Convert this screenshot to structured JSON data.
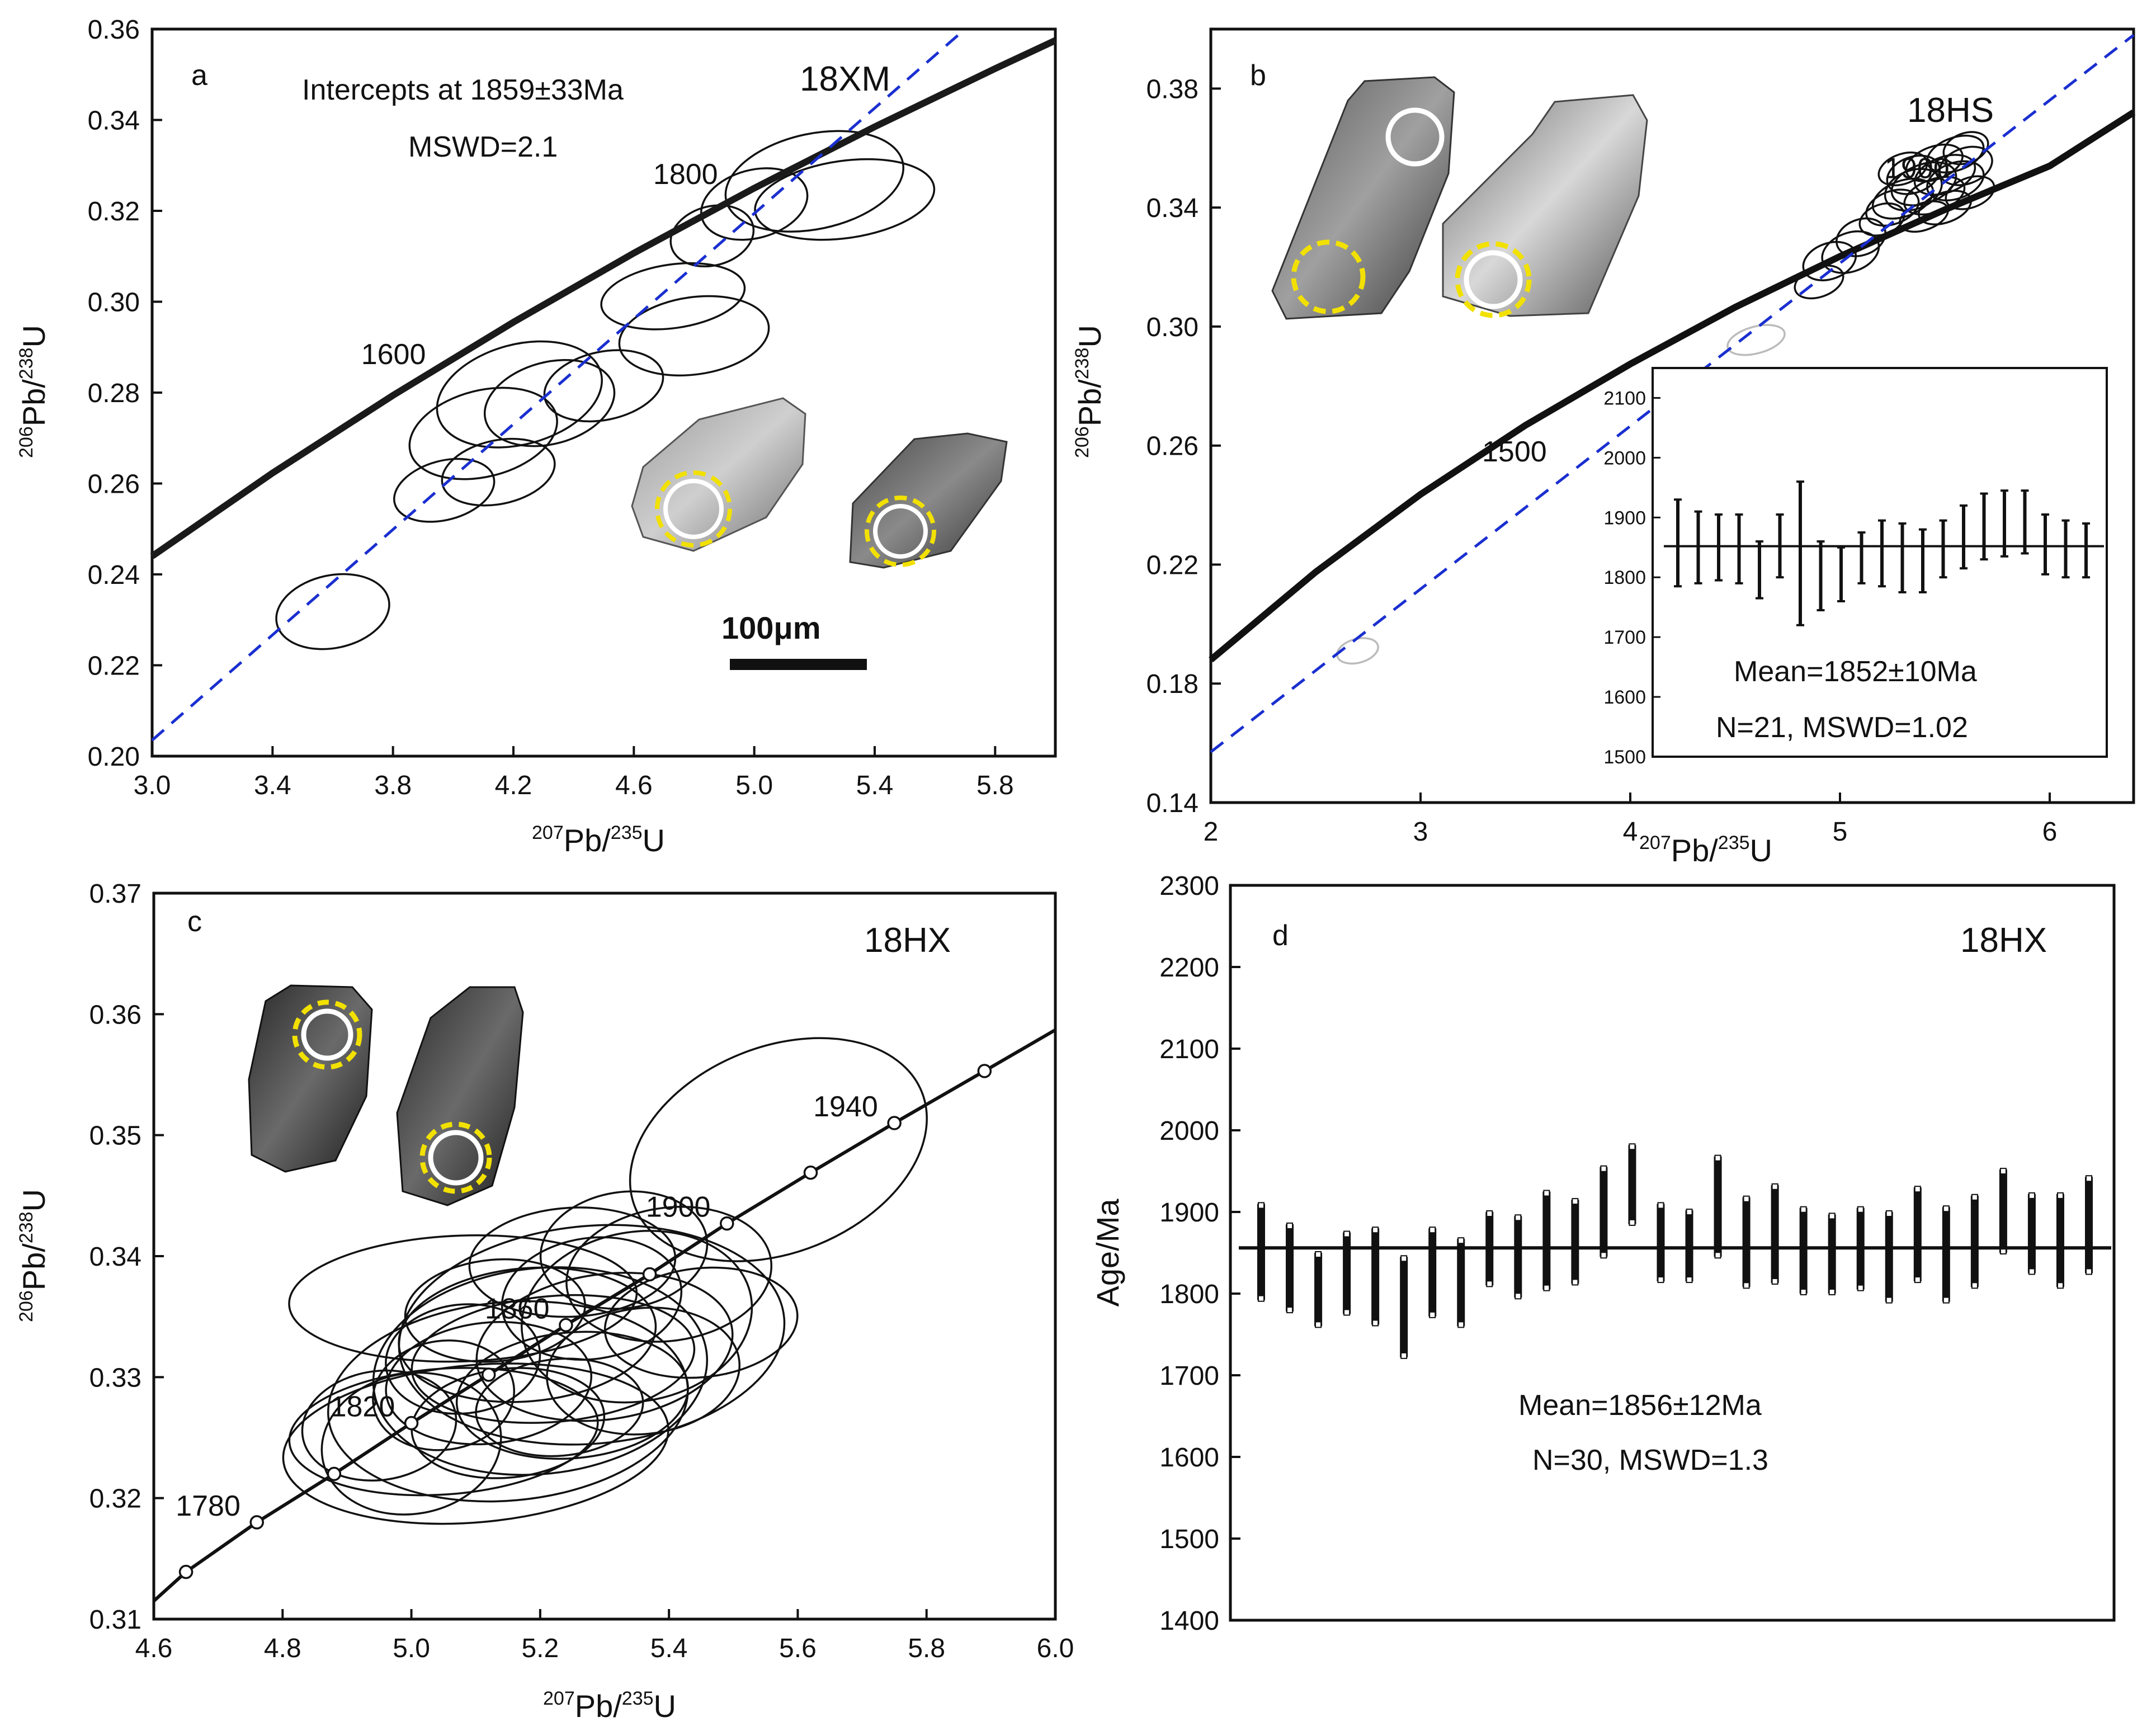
{
  "figure": {
    "panels": [
      "a",
      "b",
      "c",
      "d"
    ]
  },
  "chart_data": [
    {
      "type": "scatter",
      "subtype": "concordia",
      "panel": "a",
      "sample": "18XM",
      "xlabel_parts": [
        "207",
        "Pb/",
        "235",
        "U"
      ],
      "ylabel_parts": [
        "206",
        "Pb/",
        "238",
        "U"
      ],
      "xlim": [
        3.0,
        6.0
      ],
      "ylim": [
        0.2,
        0.36
      ],
      "xticks": [
        3.0,
        3.4,
        3.8,
        4.2,
        4.6,
        5.0,
        5.4,
        5.8
      ],
      "xtick_labels": [
        "3.0",
        "3.4",
        "3.8",
        "4.2",
        "4.6",
        "5.0",
        "5.4",
        "5.8"
      ],
      "yticks": [
        0.2,
        0.22,
        0.24,
        0.26,
        0.28,
        0.3,
        0.32,
        0.34,
        0.36
      ],
      "ytick_labels": [
        "0.20",
        "0.22",
        "0.24",
        "0.26",
        "0.28",
        "0.30",
        "0.32",
        "0.34",
        "0.36"
      ],
      "concordia_curve": {
        "x": [
          3.0,
          3.4,
          3.8,
          4.2,
          4.6,
          5.0,
          5.4,
          5.8,
          6.0
        ],
        "y": [
          0.244,
          0.2623,
          0.2794,
          0.2955,
          0.3107,
          0.325,
          0.3385,
          0.3513,
          0.3575
        ]
      },
      "age_markers": [
        {
          "label": "1600",
          "x": 3.88,
          "y": 0.2826
        },
        {
          "label": "1800",
          "x": 4.85,
          "y": 0.3222
        }
      ],
      "discordia_line": {
        "x": [
          3.0,
          5.7
        ],
        "y": [
          0.2035,
          0.36
        ],
        "color": "#1a2fd0"
      },
      "ellipses": [
        {
          "x": 3.6,
          "y": 0.2318,
          "rx": 0.19,
          "ry": 0.008,
          "angle_deg": 12
        },
        {
          "x": 3.97,
          "y": 0.2585,
          "rx": 0.17,
          "ry": 0.0065,
          "angle_deg": 15
        },
        {
          "x": 4.15,
          "y": 0.2625,
          "rx": 0.19,
          "ry": 0.007,
          "angle_deg": 12
        },
        {
          "x": 4.22,
          "y": 0.2796,
          "rx": 0.28,
          "ry": 0.011,
          "angle_deg": 15
        },
        {
          "x": 4.32,
          "y": 0.2777,
          "rx": 0.22,
          "ry": 0.009,
          "angle_deg": 15
        },
        {
          "x": 4.1,
          "y": 0.271,
          "rx": 0.25,
          "ry": 0.0095,
          "angle_deg": 14
        },
        {
          "x": 4.5,
          "y": 0.2815,
          "rx": 0.2,
          "ry": 0.0075,
          "angle_deg": 12
        },
        {
          "x": 4.73,
          "y": 0.3012,
          "rx": 0.24,
          "ry": 0.007,
          "angle_deg": 8
        },
        {
          "x": 4.8,
          "y": 0.2925,
          "rx": 0.25,
          "ry": 0.0085,
          "angle_deg": 8
        },
        {
          "x": 4.86,
          "y": 0.3145,
          "rx": 0.14,
          "ry": 0.0065,
          "angle_deg": 15
        },
        {
          "x": 5.0,
          "y": 0.3215,
          "rx": 0.18,
          "ry": 0.0075,
          "angle_deg": 15
        },
        {
          "x": 5.2,
          "y": 0.3265,
          "rx": 0.3,
          "ry": 0.0105,
          "angle_deg": 12
        },
        {
          "x": 5.3,
          "y": 0.3225,
          "rx": 0.3,
          "ry": 0.0085,
          "angle_deg": 8
        }
      ],
      "annotations": [
        "Intercepts at 1859±33Ma",
        "MSWD=2.1"
      ],
      "scale_bar_label": "100μm"
    },
    {
      "type": "scatter",
      "subtype": "concordia",
      "panel": "b",
      "sample": "18HS",
      "xlabel_parts": [
        "207",
        "Pb/",
        "235",
        "U"
      ],
      "ylabel_parts": [
        "206",
        "Pb/",
        "238",
        "U"
      ],
      "xlim": [
        2.0,
        6.4
      ],
      "ylim": [
        0.14,
        0.4
      ],
      "xticks": [
        2,
        3,
        4,
        5,
        6
      ],
      "xtick_labels": [
        "2",
        "3",
        "4",
        "5",
        "6"
      ],
      "yticks": [
        0.14,
        0.18,
        0.22,
        0.26,
        0.3,
        0.34,
        0.38
      ],
      "ytick_labels": [
        "0.14",
        "0.18",
        "0.22",
        "0.26",
        "0.30",
        "0.34",
        "0.38"
      ],
      "concordia_curve": {
        "x": [
          2.0,
          2.5,
          3.0,
          3.5,
          4.0,
          4.5,
          5.0,
          5.5,
          6.0,
          6.4
        ],
        "y": [
          0.188,
          0.2175,
          0.2436,
          0.2668,
          0.2874,
          0.3065,
          0.3236,
          0.3393,
          0.354,
          0.372
        ]
      },
      "age_markers": [
        {
          "label": "1500",
          "x": 3.4,
          "y": 0.2622
        },
        {
          "label": "1900",
          "x": 5.6,
          "y": 0.3424
        }
      ],
      "discordia_line": {
        "x": [
          2.0,
          6.4
        ],
        "y": [
          0.157,
          0.398
        ],
        "color": "#1a2fd0"
      },
      "ellipses": [
        {
          "x": 4.9,
          "y": 0.315,
          "rx": 0.12,
          "ry": 0.005,
          "angle_deg": 20
        },
        {
          "x": 4.95,
          "y": 0.322,
          "rx": 0.13,
          "ry": 0.006,
          "angle_deg": 20
        },
        {
          "x": 5.05,
          "y": 0.325,
          "rx": 0.14,
          "ry": 0.0065,
          "angle_deg": 20
        },
        {
          "x": 5.1,
          "y": 0.33,
          "rx": 0.12,
          "ry": 0.006,
          "angle_deg": 20
        },
        {
          "x": 5.25,
          "y": 0.34,
          "rx": 0.13,
          "ry": 0.0055,
          "angle_deg": 20
        },
        {
          "x": 5.3,
          "y": 0.343,
          "rx": 0.15,
          "ry": 0.006,
          "angle_deg": 20
        },
        {
          "x": 5.35,
          "y": 0.346,
          "rx": 0.14,
          "ry": 0.0065,
          "angle_deg": 20
        },
        {
          "x": 5.4,
          "y": 0.348,
          "rx": 0.16,
          "ry": 0.0065,
          "angle_deg": 20
        },
        {
          "x": 5.45,
          "y": 0.344,
          "rx": 0.15,
          "ry": 0.0055,
          "angle_deg": 20
        },
        {
          "x": 5.5,
          "y": 0.351,
          "rx": 0.15,
          "ry": 0.006,
          "angle_deg": 20
        },
        {
          "x": 5.55,
          "y": 0.349,
          "rx": 0.14,
          "ry": 0.006,
          "angle_deg": 20
        },
        {
          "x": 5.6,
          "y": 0.354,
          "rx": 0.13,
          "ry": 0.006,
          "angle_deg": 20
        },
        {
          "x": 5.55,
          "y": 0.358,
          "rx": 0.14,
          "ry": 0.0055,
          "angle_deg": 20
        },
        {
          "x": 5.45,
          "y": 0.355,
          "rx": 0.14,
          "ry": 0.0055,
          "angle_deg": 20
        },
        {
          "x": 5.35,
          "y": 0.351,
          "rx": 0.13,
          "ry": 0.006,
          "angle_deg": 20
        },
        {
          "x": 5.5,
          "y": 0.34,
          "rx": 0.13,
          "ry": 0.005,
          "angle_deg": 20
        },
        {
          "x": 5.62,
          "y": 0.345,
          "rx": 0.12,
          "ry": 0.005,
          "angle_deg": 20
        },
        {
          "x": 5.4,
          "y": 0.337,
          "rx": 0.12,
          "ry": 0.0045,
          "angle_deg": 20
        },
        {
          "x": 5.6,
          "y": 0.36,
          "rx": 0.11,
          "ry": 0.005,
          "angle_deg": 20
        },
        {
          "x": 5.3,
          "y": 0.353,
          "rx": 0.12,
          "ry": 0.005,
          "angle_deg": 20
        },
        {
          "x": 5.2,
          "y": 0.336,
          "rx": 0.11,
          "ry": 0.005,
          "angle_deg": 20
        },
        {
          "x": 4.6,
          "y": 0.2955,
          "rx": 0.14,
          "ry": 0.0045,
          "angle_deg": 15,
          "faded": true
        },
        {
          "x": 2.7,
          "y": 0.191,
          "rx": 0.1,
          "ry": 0.004,
          "angle_deg": 15,
          "faded": true
        }
      ],
      "inset": {
        "type": "bar",
        "subtype": "weighted_mean",
        "ylim": [
          1500,
          2150
        ],
        "yticks": [
          1500,
          1600,
          1700,
          1800,
          1900,
          2000,
          2100
        ],
        "ytick_labels": [
          "1500",
          "1600",
          "1700",
          "1800",
          "1900",
          "2000",
          "2100"
        ],
        "mean_line": 1852,
        "bars": [
          {
            "low": 1785,
            "high": 1930
          },
          {
            "low": 1790,
            "high": 1910
          },
          {
            "low": 1795,
            "high": 1905
          },
          {
            "low": 1790,
            "high": 1905
          },
          {
            "low": 1765,
            "high": 1860
          },
          {
            "low": 1800,
            "high": 1905
          },
          {
            "low": 1720,
            "high": 1960
          },
          {
            "low": 1745,
            "high": 1860
          },
          {
            "low": 1760,
            "high": 1850
          },
          {
            "low": 1790,
            "high": 1875
          },
          {
            "low": 1785,
            "high": 1895
          },
          {
            "low": 1775,
            "high": 1890
          },
          {
            "low": 1775,
            "high": 1880
          },
          {
            "low": 1800,
            "high": 1895
          },
          {
            "low": 1815,
            "high": 1920
          },
          {
            "low": 1830,
            "high": 1940
          },
          {
            "low": 1835,
            "high": 1945
          },
          {
            "low": 1840,
            "high": 1945
          },
          {
            "low": 1805,
            "high": 1905
          },
          {
            "low": 1800,
            "high": 1895
          },
          {
            "low": 1800,
            "high": 1890
          }
        ],
        "annotations": [
          "Mean=1852±10Ma",
          "N=21,  MSWD=1.02"
        ]
      }
    },
    {
      "type": "scatter",
      "subtype": "concordia",
      "panel": "c",
      "sample": "18HX",
      "xlabel_parts": [
        "207",
        "Pb/",
        "235",
        "U"
      ],
      "ylabel_parts": [
        "206",
        "Pb/",
        "238",
        "U"
      ],
      "xlim": [
        4.6,
        6.0
      ],
      "ylim": [
        0.31,
        0.37
      ],
      "xticks": [
        4.6,
        4.8,
        5.0,
        5.2,
        5.4,
        5.6,
        5.8,
        6.0
      ],
      "xtick_labels": [
        "4.6",
        "4.8",
        "5.0",
        "5.2",
        "5.4",
        "5.6",
        "5.8",
        "6.0"
      ],
      "yticks": [
        0.31,
        0.32,
        0.33,
        0.34,
        0.35,
        0.36,
        0.37
      ],
      "ytick_labels": [
        "0.31",
        "0.32",
        "0.33",
        "0.34",
        "0.35",
        "0.36",
        "0.37"
      ],
      "concordia_curve": {
        "x": [
          4.6,
          4.65,
          4.76,
          4.88,
          5.0,
          5.12,
          5.24,
          5.37,
          5.49,
          5.62,
          5.75,
          5.89,
          6.0
        ],
        "y": [
          0.3115,
          0.3139,
          0.318,
          0.322,
          0.3262,
          0.3302,
          0.3343,
          0.3385,
          0.3427,
          0.3469,
          0.351,
          0.3553,
          0.3587
        ]
      },
      "concordia_markers": [
        {
          "x": 4.65,
          "y": 0.3139,
          "label": ""
        },
        {
          "x": 4.76,
          "y": 0.318,
          "label": "1780"
        },
        {
          "x": 4.88,
          "y": 0.322,
          "label": ""
        },
        {
          "x": 5.0,
          "y": 0.3262,
          "label": "1820"
        },
        {
          "x": 5.12,
          "y": 0.3302,
          "label": ""
        },
        {
          "x": 5.24,
          "y": 0.3343,
          "label": "1860"
        },
        {
          "x": 5.37,
          "y": 0.3385,
          "label": ""
        },
        {
          "x": 5.49,
          "y": 0.3427,
          "label": "1900"
        },
        {
          "x": 5.62,
          "y": 0.3469,
          "label": ""
        },
        {
          "x": 5.75,
          "y": 0.351,
          "label": "1940"
        },
        {
          "x": 5.89,
          "y": 0.3553,
          "label": ""
        }
      ],
      "ellipses": [
        {
          "x": 5.57,
          "y": 0.3488,
          "rx": 0.24,
          "ry": 0.0085,
          "angle_deg": 22
        },
        {
          "x": 5.08,
          "y": 0.3365,
          "rx": 0.27,
          "ry": 0.0052,
          "angle_deg": 2
        },
        {
          "x": 5.28,
          "y": 0.3335,
          "rx": 0.3,
          "ry": 0.009,
          "angle_deg": 5
        },
        {
          "x": 5.2,
          "y": 0.3305,
          "rx": 0.26,
          "ry": 0.0085,
          "angle_deg": 6
        },
        {
          "x": 5.15,
          "y": 0.328,
          "rx": 0.28,
          "ry": 0.0082,
          "angle_deg": 5
        },
        {
          "x": 5.1,
          "y": 0.3245,
          "rx": 0.3,
          "ry": 0.0065,
          "angle_deg": 5
        },
        {
          "x": 5.05,
          "y": 0.3255,
          "rx": 0.24,
          "ry": 0.0052,
          "angle_deg": 4
        },
        {
          "x": 4.95,
          "y": 0.326,
          "rx": 0.12,
          "ry": 0.0045,
          "angle_deg": 8
        },
        {
          "x": 5.35,
          "y": 0.335,
          "rx": 0.18,
          "ry": 0.007,
          "angle_deg": 10
        },
        {
          "x": 5.3,
          "y": 0.3325,
          "rx": 0.2,
          "ry": 0.006,
          "angle_deg": 8
        },
        {
          "x": 5.22,
          "y": 0.3315,
          "rx": 0.22,
          "ry": 0.0052,
          "angle_deg": 5
        },
        {
          "x": 5.18,
          "y": 0.3335,
          "rx": 0.2,
          "ry": 0.0055,
          "angle_deg": 5
        },
        {
          "x": 5.25,
          "y": 0.3285,
          "rx": 0.18,
          "ry": 0.0052,
          "angle_deg": 5
        },
        {
          "x": 5.12,
          "y": 0.3295,
          "rx": 0.16,
          "ry": 0.005,
          "angle_deg": 6
        },
        {
          "x": 5.15,
          "y": 0.3262,
          "rx": 0.15,
          "ry": 0.0045,
          "angle_deg": 6
        },
        {
          "x": 5.4,
          "y": 0.3385,
          "rx": 0.16,
          "ry": 0.0055,
          "angle_deg": 8
        },
        {
          "x": 5.28,
          "y": 0.3365,
          "rx": 0.14,
          "ry": 0.005,
          "angle_deg": 8
        },
        {
          "x": 5.33,
          "y": 0.3405,
          "rx": 0.13,
          "ry": 0.0048,
          "angle_deg": 8
        },
        {
          "x": 5.0,
          "y": 0.3245,
          "rx": 0.14,
          "ry": 0.0058,
          "angle_deg": 10
        },
        {
          "x": 5.08,
          "y": 0.3315,
          "rx": 0.12,
          "ry": 0.0045,
          "angle_deg": 6
        },
        {
          "x": 5.25,
          "y": 0.3395,
          "rx": 0.16,
          "ry": 0.0045,
          "angle_deg": 3
        },
        {
          "x": 5.45,
          "y": 0.3345,
          "rx": 0.15,
          "ry": 0.0045,
          "angle_deg": 6
        },
        {
          "x": 5.13,
          "y": 0.3355,
          "rx": 0.14,
          "ry": 0.0042,
          "angle_deg": 5
        },
        {
          "x": 5.23,
          "y": 0.3275,
          "rx": 0.13,
          "ry": 0.004,
          "angle_deg": 5
        },
        {
          "x": 5.05,
          "y": 0.3285,
          "rx": 0.11,
          "ry": 0.0045,
          "angle_deg": 8
        },
        {
          "x": 5.36,
          "y": 0.3305,
          "rx": 0.15,
          "ry": 0.0052,
          "angle_deg": 6
        }
      ]
    },
    {
      "type": "bar",
      "subtype": "weighted_mean",
      "panel": "d",
      "sample": "18HX",
      "ylabel": "Age/Ma",
      "ylim": [
        1400,
        2300
      ],
      "yticks": [
        1400,
        1500,
        1600,
        1700,
        1800,
        1900,
        2000,
        2100,
        2200,
        2300
      ],
      "ytick_labels": [
        "1400",
        "1500",
        "1600",
        "1700",
        "1800",
        "1900",
        "2000",
        "2100",
        "2200",
        "2300"
      ],
      "mean_line": 1856,
      "bars": [
        {
          "low": 1792,
          "high": 1910
        },
        {
          "low": 1778,
          "high": 1885
        },
        {
          "low": 1760,
          "high": 1850
        },
        {
          "low": 1775,
          "high": 1875
        },
        {
          "low": 1762,
          "high": 1880
        },
        {
          "low": 1722,
          "high": 1845
        },
        {
          "low": 1772,
          "high": 1880
        },
        {
          "low": 1760,
          "high": 1867
        },
        {
          "low": 1810,
          "high": 1900
        },
        {
          "low": 1795,
          "high": 1895
        },
        {
          "low": 1805,
          "high": 1925
        },
        {
          "low": 1812,
          "high": 1915
        },
        {
          "low": 1845,
          "high": 1955
        },
        {
          "low": 1885,
          "high": 1982
        },
        {
          "low": 1815,
          "high": 1910
        },
        {
          "low": 1815,
          "high": 1902
        },
        {
          "low": 1845,
          "high": 1968
        },
        {
          "low": 1808,
          "high": 1918
        },
        {
          "low": 1813,
          "high": 1933
        },
        {
          "low": 1800,
          "high": 1905
        },
        {
          "low": 1800,
          "high": 1897
        },
        {
          "low": 1805,
          "high": 1905
        },
        {
          "low": 1790,
          "high": 1900
        },
        {
          "low": 1815,
          "high": 1930
        },
        {
          "low": 1790,
          "high": 1906
        },
        {
          "low": 1808,
          "high": 1920
        },
        {
          "low": 1850,
          "high": 1952
        },
        {
          "low": 1825,
          "high": 1922
        },
        {
          "low": 1808,
          "high": 1922
        },
        {
          "low": 1825,
          "high": 1943
        }
      ],
      "annotations": [
        "Mean=1856±12Ma",
        "N=30,  MSWD=1.3"
      ]
    }
  ]
}
